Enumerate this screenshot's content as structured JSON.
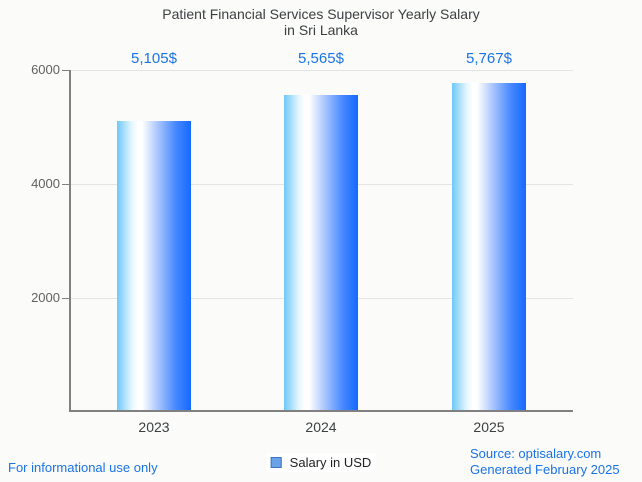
{
  "page": {
    "background": "#fbfbf9",
    "accent_blue": "#1a73e8",
    "axis_color": "#808080",
    "gridline_color": "#e4e4e2"
  },
  "title": {
    "line1": "Patient Financial Services Supervisor Yearly Salary",
    "line2": "in Sri Lanka"
  },
  "chart_data": {
    "type": "bar",
    "title": "Patient Financial Services Supervisor Yearly Salary in Sri Lanka",
    "categories": [
      "2023",
      "2024",
      "2025"
    ],
    "series": [
      {
        "name": "Salary in USD",
        "values": [
          5105,
          5565,
          5767
        ]
      }
    ],
    "value_labels": [
      "5,105$",
      "5,565$",
      "5,767$"
    ],
    "xlabel": "",
    "ylabel": "",
    "ylim": [
      0,
      6000
    ],
    "yticks": [
      "6000",
      "4000",
      "2000"
    ],
    "ytick_values": [
      6000,
      4000,
      2000
    ],
    "grid": true,
    "legend_position": "bottom",
    "bar_gradient": [
      "#6ec8f7",
      "#ffffff",
      "#156aff"
    ],
    "value_label_color": "#1a73e8"
  },
  "legend": {
    "label": "Salary in USD",
    "marker_fill": "#69a3e7",
    "marker_border": "#3c74c0"
  },
  "footer": {
    "left_note": "For informational use only",
    "source_line1": "Source: optisalary.com",
    "source_line2": "Generated February 2025"
  }
}
